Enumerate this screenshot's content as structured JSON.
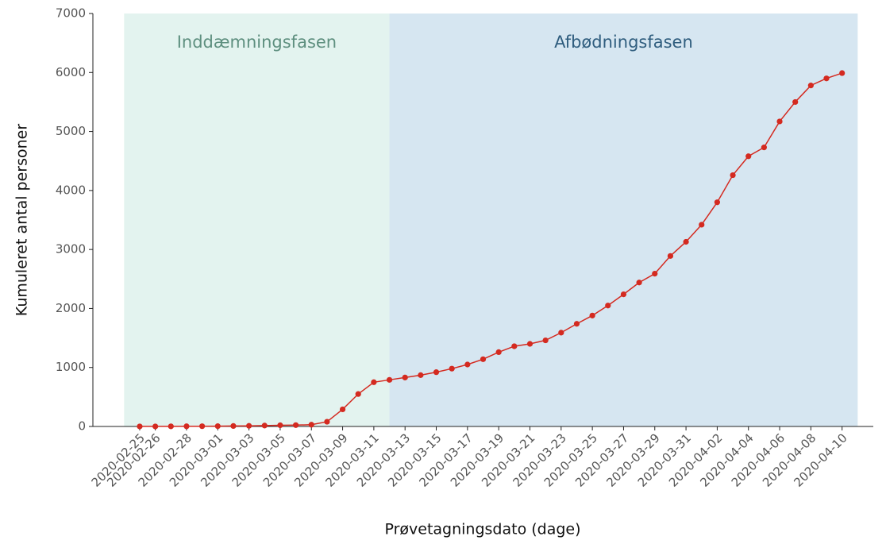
{
  "chart_data": {
    "type": "line",
    "xlabel": "Prøvetagningsdato (dage)",
    "ylabel": "Kumuleret antal personer",
    "x": [
      "2020-02-25",
      "2020-02-26",
      "2020-02-27",
      "2020-02-28",
      "2020-02-29",
      "2020-03-01",
      "2020-03-02",
      "2020-03-03",
      "2020-03-04",
      "2020-03-05",
      "2020-03-06",
      "2020-03-07",
      "2020-03-08",
      "2020-03-09",
      "2020-03-10",
      "2020-03-11",
      "2020-03-12",
      "2020-03-13",
      "2020-03-14",
      "2020-03-15",
      "2020-03-16",
      "2020-03-17",
      "2020-03-18",
      "2020-03-19",
      "2020-03-20",
      "2020-03-21",
      "2020-03-22",
      "2020-03-23",
      "2020-03-24",
      "2020-03-25",
      "2020-03-26",
      "2020-03-27",
      "2020-03-28",
      "2020-03-29",
      "2020-03-30",
      "2020-03-31",
      "2020-04-01",
      "2020-04-02",
      "2020-04-03",
      "2020-04-04",
      "2020-04-05",
      "2020-04-06",
      "2020-04-07",
      "2020-04-08",
      "2020-04-09",
      "2020-04-10"
    ],
    "values": [
      1,
      1,
      2,
      3,
      4,
      5,
      8,
      10,
      15,
      20,
      23,
      30,
      80,
      290,
      550,
      750,
      790,
      830,
      870,
      920,
      980,
      1050,
      1140,
      1260,
      1360,
      1400,
      1460,
      1590,
      1740,
      1880,
      2050,
      2240,
      2440,
      2590,
      2890,
      3130,
      3420,
      3800,
      4260,
      4580,
      4730,
      5170,
      5500,
      5780,
      5900,
      5990
    ],
    "color": "#d42a20",
    "xlim": [
      "2020-02-22",
      "2020-04-12"
    ],
    "xticks": [
      "2020-02-25",
      "2020-02-26",
      "2020-02-28",
      "2020-03-01",
      "2020-03-03",
      "2020-03-05",
      "2020-03-07",
      "2020-03-09",
      "2020-03-11",
      "2020-03-13",
      "2020-03-15",
      "2020-03-17",
      "2020-03-19",
      "2020-03-21",
      "2020-03-23",
      "2020-03-25",
      "2020-03-27",
      "2020-03-29",
      "2020-03-31",
      "2020-04-02",
      "2020-04-04",
      "2020-04-06",
      "2020-04-08",
      "2020-04-10"
    ],
    "ylim": [
      0,
      7000
    ],
    "yticks": [
      0,
      1000,
      2000,
      3000,
      4000,
      5000,
      6000,
      7000
    ],
    "phases": [
      {
        "label": "Inddæmningsfasen",
        "start": "2020-02-24",
        "end": "2020-03-12",
        "color": "#e3f3ef",
        "text_color": "#5e8f7f"
      },
      {
        "label": "Afbødningsfasen",
        "start": "2020-03-12",
        "end": "2020-04-11",
        "color": "#d6e6f1",
        "text_color": "#2f5d7e"
      }
    ]
  }
}
